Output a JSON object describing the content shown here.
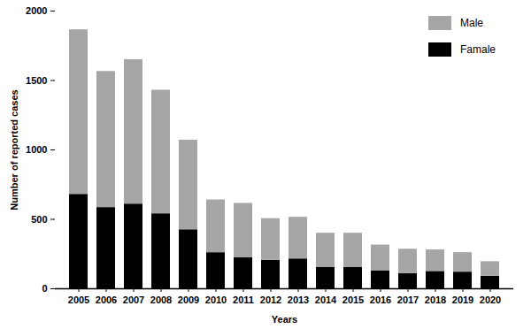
{
  "chart_data": {
    "type": "bar",
    "stacked": true,
    "x_label": "Years",
    "y_label": "Number of reported cases",
    "categories": [
      "2005",
      "2006",
      "2007",
      "2008",
      "2009",
      "2010",
      "2011",
      "2012",
      "2013",
      "2014",
      "2015",
      "2016",
      "2017",
      "2018",
      "2019",
      "2020"
    ],
    "series": [
      {
        "name": "Male",
        "color": "#a6a6a6",
        "values": [
          1185,
          980,
          1040,
          890,
          645,
          380,
          390,
          300,
          300,
          245,
          245,
          185,
          175,
          155,
          140,
          105
        ]
      },
      {
        "name": "Famale",
        "color": "#000000",
        "values": [
          680,
          585,
          610,
          540,
          425,
          260,
          225,
          205,
          215,
          155,
          155,
          130,
          110,
          125,
          120,
          90
        ]
      }
    ],
    "ylim": [
      0,
      2000
    ],
    "yticks": [
      0,
      500,
      1000,
      1500,
      2000
    ],
    "legend": "top-right",
    "grid": false
  }
}
